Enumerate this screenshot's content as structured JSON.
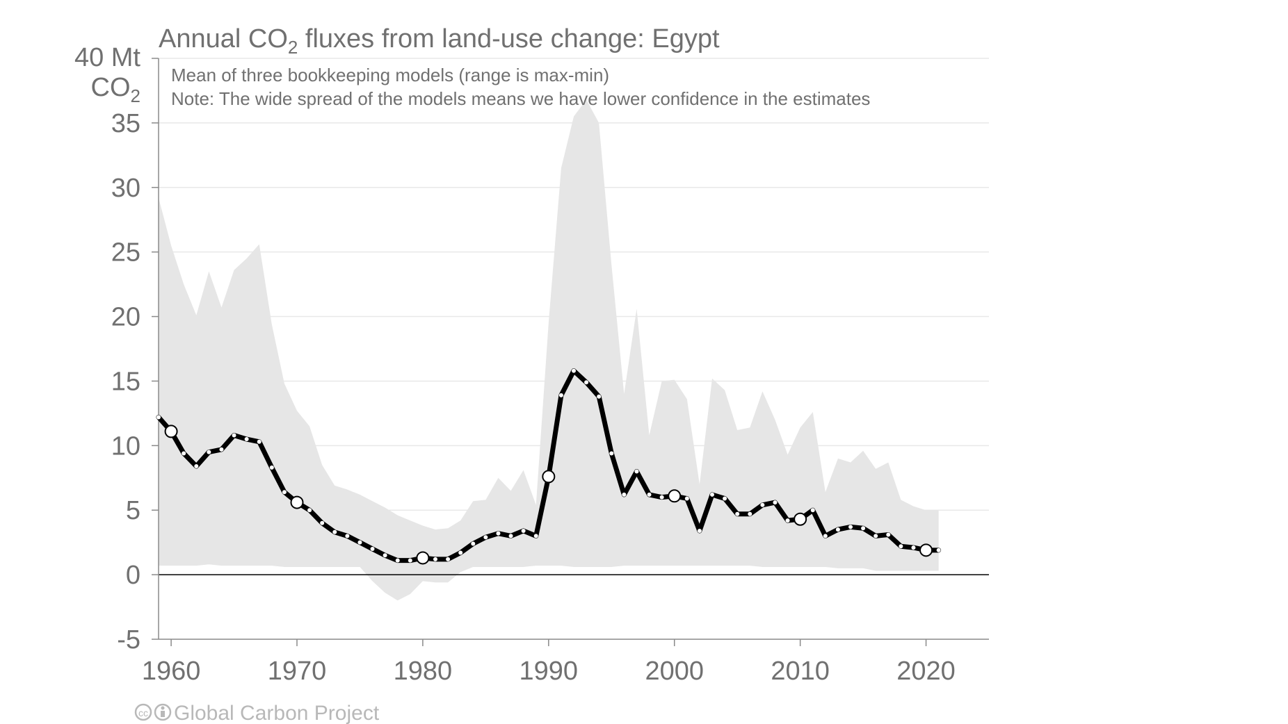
{
  "chart_data": {
    "type": "line",
    "title_prefix": "Annual CO",
    "title_sub": "2",
    "title_suffix": " fluxes from land-use change: Egypt",
    "subtitle_1": "Mean of three bookkeeping models (range is max-min)",
    "subtitle_2": "Note: The wide spread of the models means we have lower confidence in the estimates",
    "y_unit_line1": "40 Mt",
    "y_unit_line2_prefix": "CO",
    "y_unit_line2_sub": "2",
    "footer": "Global Carbon Project",
    "ylim": [
      -5,
      40
    ],
    "xlim": [
      1959,
      2025
    ],
    "y_ticks": [
      "35",
      "30",
      "25",
      "20",
      "15",
      "10",
      "5",
      "0",
      "-5"
    ],
    "y_tick_values": [
      35,
      30,
      25,
      20,
      15,
      10,
      5,
      0,
      -5
    ],
    "x_ticks": [
      "1960",
      "1970",
      "1980",
      "1990",
      "2000",
      "2010",
      "2020"
    ],
    "x_tick_values": [
      1960,
      1970,
      1980,
      1990,
      2000,
      2010,
      2020
    ],
    "grid": true,
    "colors": {
      "line": "#000000",
      "band": "#e6e6e6",
      "text": "#707070",
      "grid": "#e8e8e8",
      "axis": "#8a8a8a"
    },
    "x": [
      1959,
      1960,
      1961,
      1962,
      1963,
      1964,
      1965,
      1966,
      1967,
      1968,
      1969,
      1970,
      1971,
      1972,
      1973,
      1974,
      1975,
      1976,
      1977,
      1978,
      1979,
      1980,
      1981,
      1982,
      1983,
      1984,
      1985,
      1986,
      1987,
      1988,
      1989,
      1990,
      1991,
      1992,
      1993,
      1994,
      1995,
      1996,
      1997,
      1998,
      1999,
      2000,
      2001,
      2002,
      2003,
      2004,
      2005,
      2006,
      2007,
      2008,
      2009,
      2010,
      2011,
      2012,
      2013,
      2014,
      2015,
      2016,
      2017,
      2018,
      2019,
      2020,
      2021
    ],
    "series": [
      {
        "values": [
          12.2,
          11.1,
          9.4,
          8.4,
          9.5,
          9.7,
          10.8,
          10.5,
          10.3,
          8.3,
          6.4,
          5.6,
          5.0,
          4.0,
          3.3,
          3.0,
          2.5,
          2.0,
          1.5,
          1.1,
          1.1,
          1.3,
          1.2,
          1.2,
          1.7,
          2.4,
          2.9,
          3.2,
          3.0,
          3.4,
          3.0,
          7.6,
          13.9,
          15.8,
          14.9,
          13.8,
          9.4,
          6.2,
          8.0,
          6.2,
          6.0,
          6.1,
          5.9,
          3.4,
          6.2,
          5.9,
          4.7,
          4.7,
          5.4,
          5.6,
          4.2,
          4.3,
          5.0,
          3.0,
          3.5,
          3.7,
          3.6,
          3.0,
          3.1,
          2.2,
          2.1,
          1.9,
          1.9
        ],
        "upper": [
          29.2,
          25.5,
          22.5,
          20.1,
          23.5,
          20.7,
          23.6,
          24.5,
          25.6,
          19.4,
          14.8,
          12.7,
          11.5,
          8.5,
          6.9,
          6.6,
          6.2,
          5.7,
          5.2,
          4.6,
          4.2,
          3.8,
          3.5,
          3.6,
          4.2,
          5.7,
          5.8,
          7.5,
          6.5,
          8.1,
          5.4,
          19.5,
          31.5,
          35.5,
          36.8,
          35.0,
          24.0,
          14.0,
          20.6,
          10.8,
          15.0,
          15.1,
          13.6,
          7.0,
          15.2,
          14.3,
          11.2,
          11.4,
          14.2,
          12.0,
          9.3,
          11.4,
          12.6,
          6.4,
          9.0,
          8.7,
          9.6,
          8.2,
          8.7,
          5.8,
          5.3,
          5.0,
          5.0
        ],
        "lower": [
          0.7,
          0.7,
          0.7,
          0.7,
          0.8,
          0.7,
          0.7,
          0.7,
          0.7,
          0.7,
          0.6,
          0.6,
          0.6,
          0.6,
          0.6,
          0.6,
          0.6,
          -0.5,
          -1.4,
          -2.0,
          -1.5,
          -0.5,
          -0.6,
          -0.6,
          0.2,
          0.6,
          0.6,
          0.6,
          0.6,
          0.6,
          0.7,
          0.7,
          0.7,
          0.6,
          0.6,
          0.6,
          0.6,
          0.7,
          0.7,
          0.7,
          0.7,
          0.7,
          0.7,
          0.7,
          0.7,
          0.7,
          0.7,
          0.7,
          0.6,
          0.6,
          0.6,
          0.6,
          0.6,
          0.6,
          0.5,
          0.5,
          0.5,
          0.3,
          0.3,
          0.3,
          0.3,
          0.3,
          0.3
        ]
      }
    ]
  }
}
